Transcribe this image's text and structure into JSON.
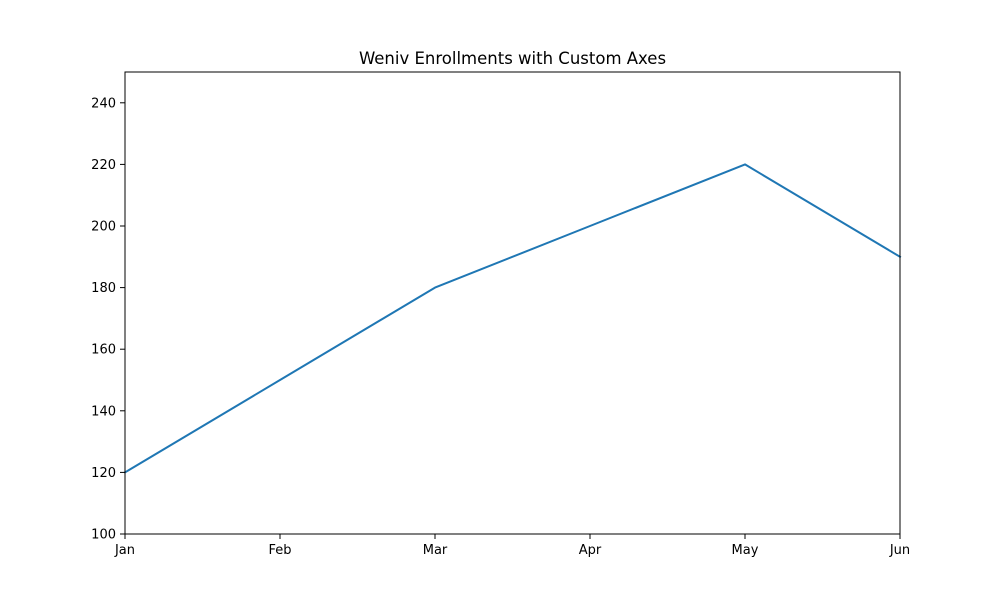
{
  "chart_data": {
    "type": "line",
    "title": "Weniv Enrollments with Custom Axes",
    "xlabel": "",
    "ylabel": "",
    "categories": [
      "Jan",
      "Feb",
      "Mar",
      "Apr",
      "May",
      "Jun"
    ],
    "series": [
      {
        "values": [
          120,
          150,
          180,
          200,
          220,
          190
        ],
        "color": "#1f77b4"
      }
    ],
    "ylim": [
      100,
      250
    ],
    "yticks": [
      100,
      120,
      140,
      160,
      180,
      200,
      220,
      240
    ],
    "grid": false,
    "legend": "none"
  }
}
